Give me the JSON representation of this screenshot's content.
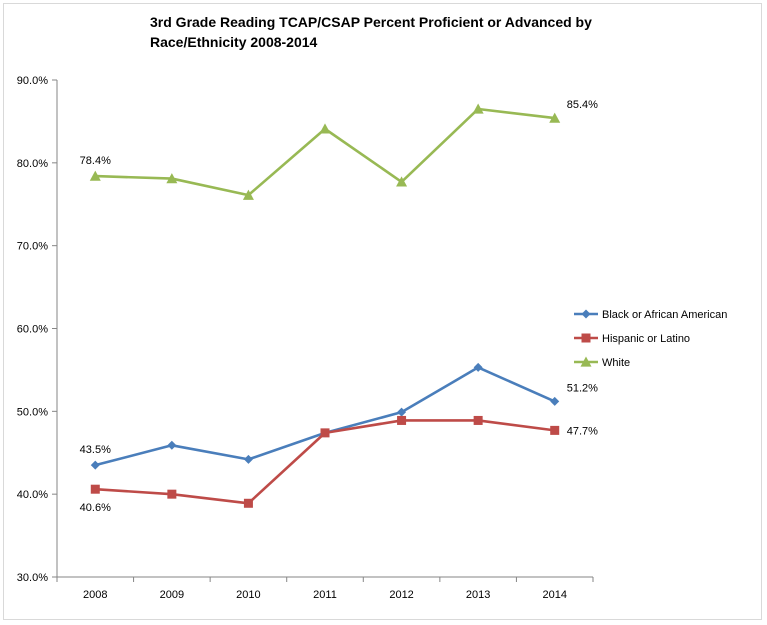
{
  "chart_data": {
    "type": "line",
    "title_lines": [
      "3rd Grade Reading TCAP/CSAP Percent Proficient or Advanced by",
      "Race/Ethnicity 2008-2014"
    ],
    "xlabel": "",
    "ylabel": "",
    "categories": [
      "2008",
      "2009",
      "2010",
      "2011",
      "2012",
      "2013",
      "2014"
    ],
    "ylim": [
      30,
      90
    ],
    "ytick_step": 10,
    "ytick_labels": [
      "30.0%",
      "40.0%",
      "50.0%",
      "60.0%",
      "70.0%",
      "80.0%",
      "90.0%"
    ],
    "grid": false,
    "legend_position": "right",
    "series": [
      {
        "name": "Black or African American",
        "color": "#4a7ebb",
        "marker": "diamond",
        "values": [
          43.5,
          45.9,
          44.2,
          47.4,
          49.9,
          55.3,
          51.2
        ]
      },
      {
        "name": "Hispanic or Latino",
        "color": "#be4b48",
        "marker": "square",
        "values": [
          40.6,
          40.0,
          38.9,
          47.4,
          48.9,
          48.9,
          47.7
        ]
      },
      {
        "name": "White",
        "color": "#98b954",
        "marker": "triangle",
        "values": [
          78.4,
          78.1,
          76.1,
          84.1,
          77.7,
          86.5,
          85.4
        ]
      }
    ],
    "data_labels": [
      {
        "series": 0,
        "index": 0,
        "text": "43.5%",
        "place": "above"
      },
      {
        "series": 0,
        "index": 6,
        "text": "51.2%",
        "place": "right-above"
      },
      {
        "series": 1,
        "index": 0,
        "text": "40.6%",
        "place": "below"
      },
      {
        "series": 1,
        "index": 6,
        "text": "47.7%",
        "place": "right"
      },
      {
        "series": 2,
        "index": 0,
        "text": "78.4%",
        "place": "above"
      },
      {
        "series": 2,
        "index": 6,
        "text": "85.4%",
        "place": "right-above"
      }
    ]
  }
}
